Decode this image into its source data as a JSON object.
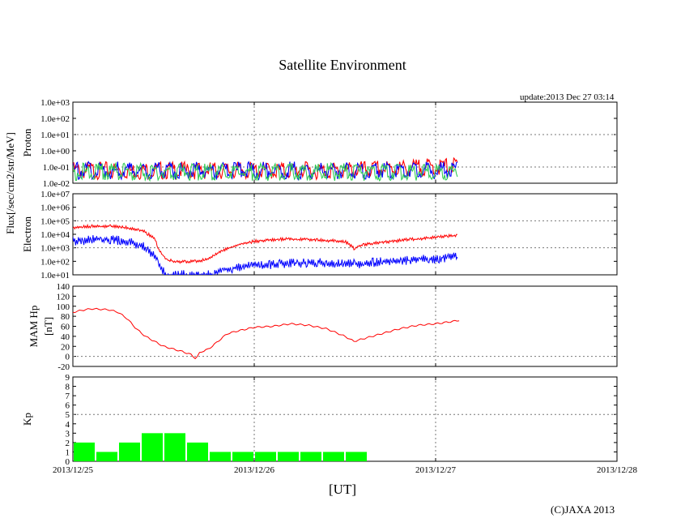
{
  "title": "Satellite Environment",
  "update": "update:2013 Dec 27 03:14",
  "copyright": "(C)JAXA 2013",
  "x_unit": "[UT]",
  "x_ticks": [
    "2013/12/25",
    "2013/12/26",
    "2013/12/27",
    "2013/12/28"
  ],
  "flux_label": "Flux[/sec/cm2/str/MeV]",
  "colors": {
    "red": "#ff0000",
    "blue": "#0000ff",
    "green": "#33cc55",
    "kp": "#00ff00"
  },
  "chart_data": [
    {
      "type": "line",
      "title": "",
      "ylabel": "Proton",
      "yscale": "log",
      "ylim": [
        0.01,
        1000
      ],
      "xlim": [
        0,
        3
      ],
      "y_ticks": [
        "1.0e+03",
        "1.0e+02",
        "1.0e+01",
        "1.0e+00",
        "1.0e-01",
        "1.0e-02"
      ],
      "series": [
        {
          "name": "proton-red",
          "color": "#ff0000",
          "x": [
            0.0,
            0.5,
            1.0,
            1.5,
            2.0,
            2.12
          ],
          "y": [
            0.06,
            0.06,
            0.06,
            0.06,
            0.1,
            0.12
          ]
        },
        {
          "name": "proton-blue",
          "color": "#0000ff",
          "x": [
            0.0,
            0.5,
            1.0,
            1.5,
            2.0,
            2.12
          ],
          "y": [
            0.06,
            0.06,
            0.06,
            0.06,
            0.06,
            0.06
          ]
        },
        {
          "name": "proton-green",
          "color": "#33cc55",
          "x": [
            0.0,
            0.5,
            1.0,
            1.5,
            2.0,
            2.12
          ],
          "y": [
            0.05,
            0.05,
            0.05,
            0.05,
            0.05,
            0.05
          ]
        }
      ]
    },
    {
      "type": "line",
      "title": "",
      "ylabel": "Electron",
      "yscale": "log",
      "ylim": [
        10,
        10000000
      ],
      "xlim": [
        0,
        3
      ],
      "y_ticks": [
        "1.0e+07",
        "1.0e+06",
        "1.0e+05",
        "1.0e+04",
        "1.0e+03",
        "1.0e+02",
        "1.0e+01"
      ],
      "series": [
        {
          "name": "electron-red",
          "color": "#ff0000",
          "x": [
            0.0,
            0.1,
            0.2,
            0.3,
            0.38,
            0.45,
            0.48,
            0.52,
            0.6,
            0.68,
            0.75,
            0.82,
            0.9,
            1.0,
            1.1,
            1.2,
            1.3,
            1.4,
            1.5,
            1.55,
            1.6,
            1.7,
            1.8,
            1.9,
            2.0,
            2.1,
            2.12
          ],
          "y": [
            30000,
            40000,
            40000,
            30000,
            20000,
            5000,
            500,
            120,
            90,
            100,
            150,
            600,
            1500,
            3000,
            4000,
            4500,
            4000,
            3500,
            3000,
            900,
            1800,
            2500,
            3500,
            4500,
            6000,
            8000,
            9000
          ]
        },
        {
          "name": "electron-blue",
          "color": "#0000ff",
          "x": [
            0.0,
            0.1,
            0.2,
            0.3,
            0.38,
            0.45,
            0.48,
            0.52,
            0.6,
            0.75,
            0.82,
            0.9,
            1.0,
            1.1,
            1.2,
            1.3,
            1.4,
            1.5,
            1.6,
            1.7,
            1.8,
            1.9,
            2.0,
            2.1,
            2.12
          ],
          "y": [
            3000,
            4000,
            4000,
            3000,
            1500,
            300,
            30,
            10,
            10,
            10,
            20,
            35,
            50,
            60,
            70,
            80,
            75,
            60,
            70,
            90,
            110,
            130,
            160,
            220,
            250
          ]
        }
      ]
    },
    {
      "type": "line",
      "title": "",
      "ylabel": "MAM Hp",
      "ylabel2": "[nT]",
      "ylim": [
        -20,
        140
      ],
      "xlim": [
        0,
        3
      ],
      "y_ticks": [
        "140",
        "120",
        "100",
        "80",
        "60",
        "40",
        "20",
        "0",
        "-20"
      ],
      "series": [
        {
          "name": "mam-hp",
          "color": "#ff0000",
          "x": [
            0.0,
            0.05,
            0.1,
            0.15,
            0.2,
            0.25,
            0.3,
            0.35,
            0.4,
            0.45,
            0.5,
            0.55,
            0.6,
            0.65,
            0.68,
            0.7,
            0.75,
            0.8,
            0.85,
            0.9,
            1.0,
            1.1,
            1.2,
            1.3,
            1.4,
            1.5,
            1.55,
            1.6,
            1.7,
            1.8,
            1.9,
            2.0,
            2.1,
            2.13
          ],
          "y": [
            88,
            92,
            95,
            94,
            93,
            88,
            75,
            55,
            40,
            30,
            20,
            15,
            10,
            4,
            -5,
            8,
            15,
            30,
            45,
            50,
            58,
            60,
            65,
            62,
            55,
            40,
            30,
            35,
            45,
            55,
            62,
            65,
            70,
            72
          ]
        }
      ]
    },
    {
      "type": "bar",
      "title": "",
      "ylabel": "Kp",
      "ylim": [
        0,
        9
      ],
      "xlim": [
        0,
        3
      ],
      "y_ticks": [
        "9",
        "8",
        "7",
        "6",
        "5",
        "4",
        "3",
        "2",
        "1",
        "0"
      ],
      "bar_width_days": 0.125,
      "x": [
        0.0625,
        0.1875,
        0.3125,
        0.4375,
        0.5625,
        0.6875,
        0.8125,
        0.9375,
        1.0625,
        1.1875,
        1.3125,
        1.4375,
        1.5625
      ],
      "values": [
        2,
        1,
        2,
        3,
        3,
        2,
        1,
        1,
        1,
        1,
        1,
        1,
        1
      ]
    }
  ]
}
